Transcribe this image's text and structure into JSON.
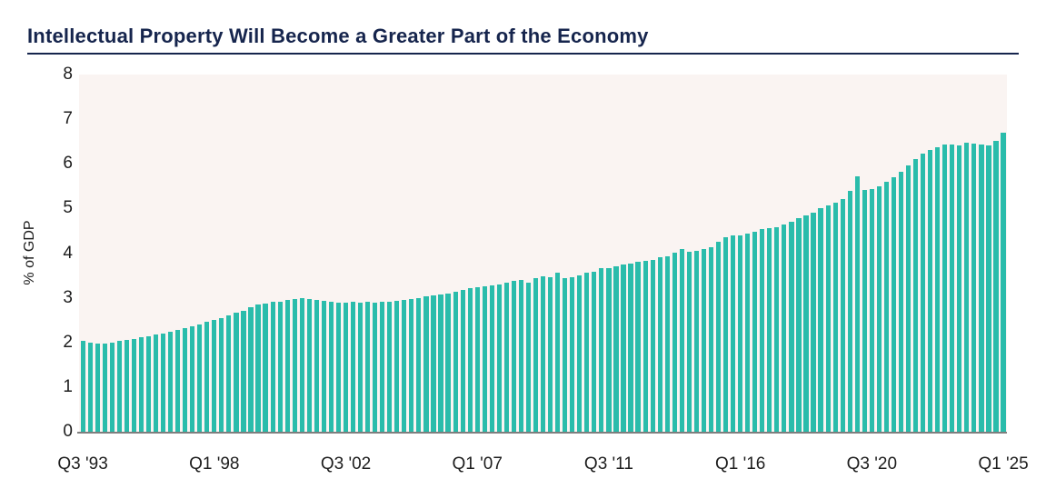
{
  "title": "Intellectual Property Will Become a Greater Part of the Economy",
  "chart_data": {
    "type": "bar",
    "title": "Intellectual Property Will Become a Greater Part of the Economy",
    "xlabel": "",
    "ylabel": "% of GDP",
    "ylim": [
      0,
      8
    ],
    "yticks": [
      0,
      1,
      2,
      3,
      4,
      5,
      6,
      7,
      8
    ],
    "grid": false,
    "legend": false,
    "frequency": "quarterly",
    "x_start": "Q3 1993",
    "x_end": "Q1 2025",
    "bar_color": "#2abcab",
    "plot_background": "#faf4f2",
    "title_color": "#16254d",
    "axis_line_color": "#7e7e7e",
    "xticks": [
      {
        "index": 0,
        "label": "Q3 '93"
      },
      {
        "index": 18,
        "label": "Q1 '98"
      },
      {
        "index": 36,
        "label": "Q3 '02"
      },
      {
        "index": 54,
        "label": "Q1 '07"
      },
      {
        "index": 72,
        "label": "Q3 '11"
      },
      {
        "index": 90,
        "label": "Q1 '16"
      },
      {
        "index": 108,
        "label": "Q3 '20"
      },
      {
        "index": 126,
        "label": "Q1 '25"
      }
    ],
    "values": [
      2.03,
      1.99,
      1.97,
      1.98,
      2.0,
      2.03,
      2.05,
      2.08,
      2.11,
      2.14,
      2.17,
      2.2,
      2.24,
      2.28,
      2.32,
      2.36,
      2.41,
      2.46,
      2.5,
      2.55,
      2.61,
      2.66,
      2.71,
      2.79,
      2.85,
      2.88,
      2.92,
      2.91,
      2.95,
      2.97,
      2.99,
      2.97,
      2.95,
      2.93,
      2.91,
      2.89,
      2.89,
      2.91,
      2.89,
      2.91,
      2.89,
      2.91,
      2.92,
      2.93,
      2.95,
      2.97,
      3.0,
      3.03,
      3.05,
      3.08,
      3.1,
      3.14,
      3.18,
      3.22,
      3.23,
      3.25,
      3.27,
      3.3,
      3.34,
      3.37,
      3.39,
      3.34,
      3.44,
      3.49,
      3.46,
      3.56,
      3.44,
      3.46,
      3.5,
      3.56,
      3.59,
      3.66,
      3.67,
      3.71,
      3.75,
      3.77,
      3.81,
      3.83,
      3.85,
      3.9,
      3.93,
      4.01,
      4.1,
      4.03,
      4.06,
      4.1,
      4.13,
      4.25,
      4.36,
      4.4,
      4.4,
      4.44,
      4.47,
      4.54,
      4.57,
      4.59,
      4.64,
      4.71,
      4.78,
      4.84,
      4.9,
      5.01,
      5.06,
      5.13,
      5.22,
      5.4,
      5.72,
      5.42,
      5.43,
      5.5,
      5.59,
      5.69,
      5.82,
      5.96,
      6.1,
      6.22,
      6.31,
      6.38,
      6.43,
      6.44,
      6.41,
      6.48,
      6.46,
      6.44,
      6.42,
      6.52,
      6.7
    ]
  }
}
